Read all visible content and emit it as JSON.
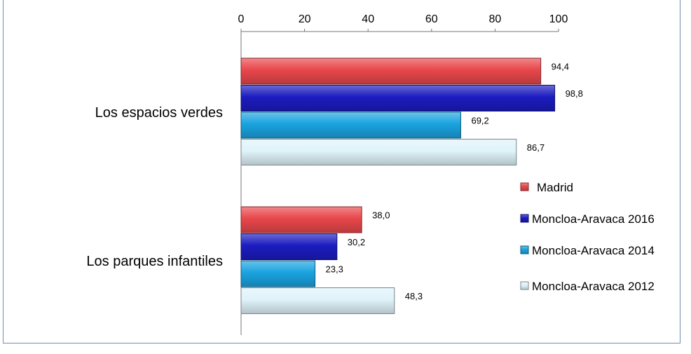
{
  "chart_data": {
    "type": "bar",
    "orientation": "horizontal",
    "categories": [
      "Los espacios verdes",
      "Los parques infantiles"
    ],
    "series": [
      {
        "name": "Madrid",
        "values": [
          94.4,
          38.0
        ],
        "labels": [
          "94,4",
          "38,0"
        ],
        "color": "#e8474b"
      },
      {
        "name": "Moncloa-Aravaca 2016",
        "values": [
          98.8,
          30.2
        ],
        "labels": [
          "98,8",
          "30,2"
        ],
        "color": "#1c1cc0"
      },
      {
        "name": "Moncloa-Aravaca 2014",
        "values": [
          69.2,
          23.3
        ],
        "labels": [
          "69,2",
          "23,3"
        ],
        "color": "#1aa3e0"
      },
      {
        "name": "Moncloa-Aravaca 2012",
        "values": [
          86.7,
          48.3
        ],
        "labels": [
          "86,7",
          "48,3"
        ],
        "color": "#dff3fa"
      }
    ],
    "xaxis_position": "top",
    "xlim": [
      0,
      100
    ],
    "xticks": [
      0,
      20,
      40,
      60,
      80,
      100
    ],
    "xtick_labels": [
      "0",
      "20",
      "40",
      "60",
      "80",
      "100"
    ],
    "grid": false,
    "legend_position": "right"
  }
}
